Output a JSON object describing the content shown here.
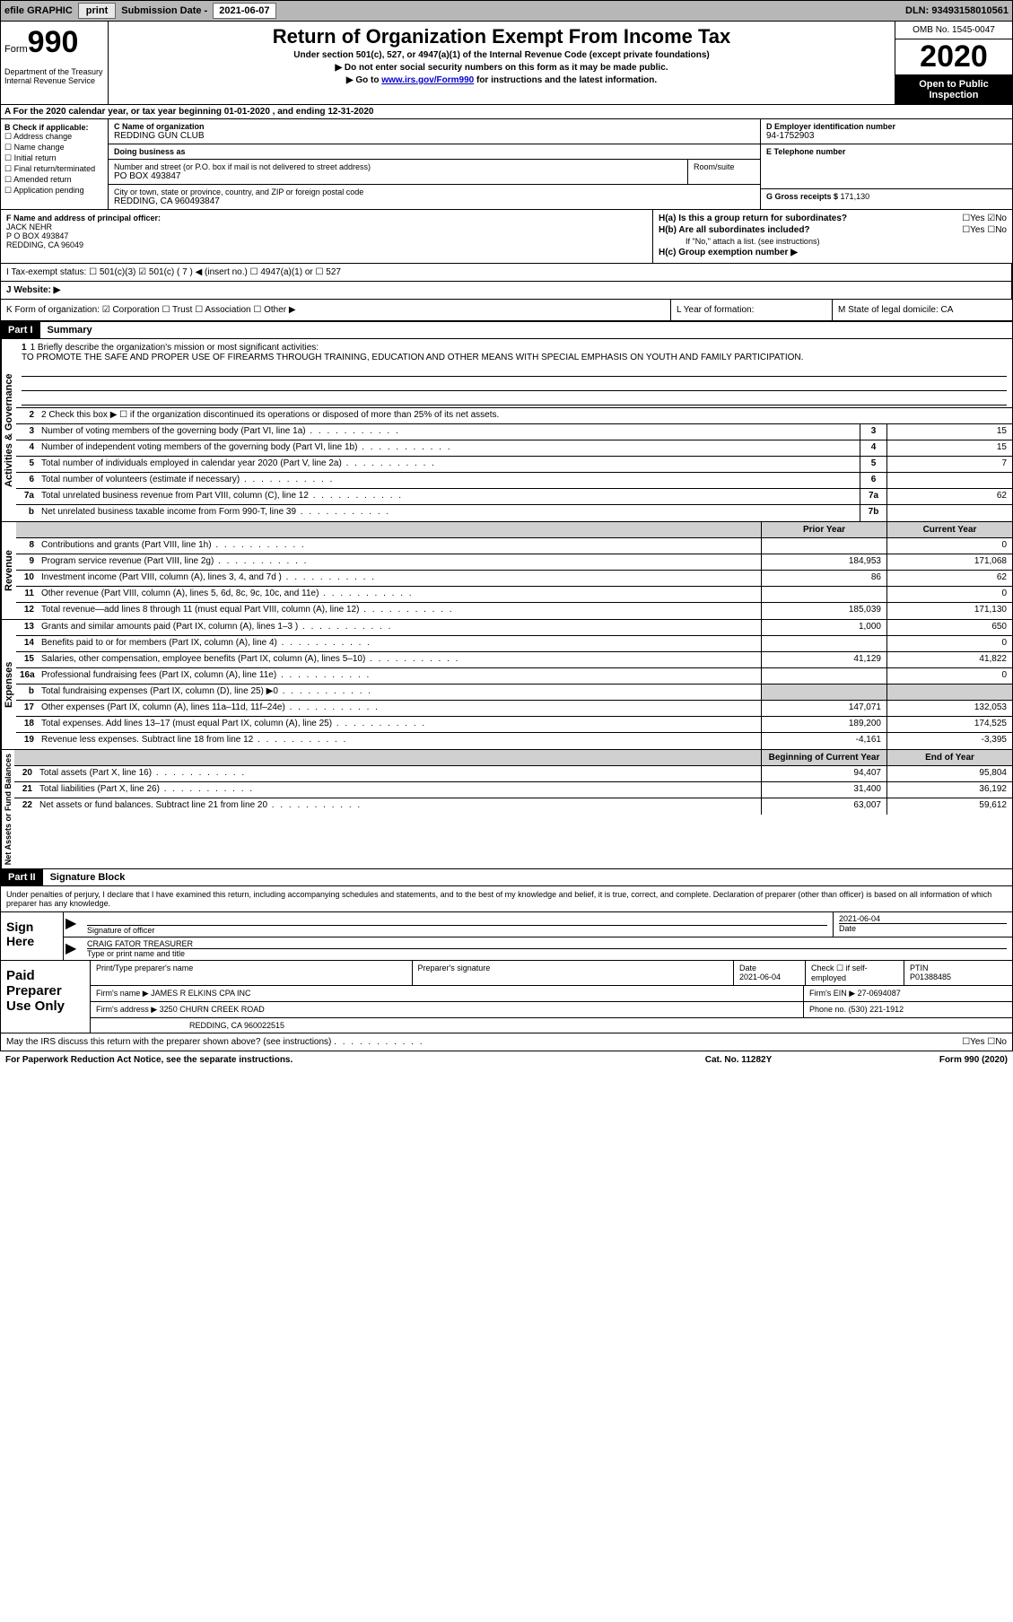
{
  "toolbar": {
    "efile": "efile GRAPHIC",
    "print": "print",
    "subdate_label": "Submission Date - ",
    "subdate": "2021-06-07",
    "dln": "DLN: 93493158010561"
  },
  "header": {
    "form_label": "Form",
    "form_num": "990",
    "dept": "Department of the Treasury\nInternal Revenue Service",
    "title": "Return of Organization Exempt From Income Tax",
    "subtitle": "Under section 501(c), 527, or 4947(a)(1) of the Internal Revenue Code (except private foundations)",
    "note1": "▶ Do not enter social security numbers on this form as it may be made public.",
    "note2_pre": "▶ Go to ",
    "note2_link": "www.irs.gov/Form990",
    "note2_post": " for instructions and the latest information.",
    "omb": "OMB No. 1545-0047",
    "year": "2020",
    "inspect": "Open to Public Inspection"
  },
  "section_a": "A For the 2020 calendar year, or tax year beginning 01-01-2020   , and ending 12-31-2020",
  "col_b": {
    "label": "B Check if applicable:",
    "items": [
      "☐ Address change",
      "☐ Name change",
      "☐ Initial return",
      "☐ Final return/terminated",
      "☐ Amended return",
      "☐ Application pending"
    ]
  },
  "col_c": {
    "name_label": "C Name of organization",
    "name": "REDDING GUN CLUB",
    "dba_label": "Doing business as",
    "addr_label": "Number and street (or P.O. box if mail is not delivered to street address)",
    "addr": "PO BOX 493847",
    "room_label": "Room/suite",
    "city_label": "City or town, state or province, country, and ZIP or foreign postal code",
    "city": "REDDING, CA  960493847"
  },
  "col_d": {
    "ein_label": "D Employer identification number",
    "ein": "94-1752903",
    "phone_label": "E Telephone number",
    "gross_label": "G Gross receipts $ ",
    "gross": "171,130"
  },
  "block_f": {
    "label": "F  Name and address of principal officer:",
    "name": "JACK NEHR",
    "addr1": "P O BOX 493847",
    "addr2": "REDDING, CA  96049",
    "h_a": "H(a)  Is this a group return for subordinates?",
    "h_a_ans": "☐Yes ☑No",
    "h_b": "H(b)  Are all subordinates included?",
    "h_b_ans": "☐Yes ☐No",
    "h_b_note": "If \"No,\" attach a list. (see instructions)",
    "h_c": "H(c)  Group exemption number ▶"
  },
  "status": {
    "label": "I    Tax-exempt status:",
    "opts": "☐ 501(c)(3)   ☑ 501(c) ( 7 ) ◀ (insert no.)   ☐ 4947(a)(1) or  ☐ 527"
  },
  "website": {
    "label": "J   Website: ▶"
  },
  "k": {
    "label": "K Form of organization:  ☑ Corporation  ☐ Trust  ☐ Association  ☐ Other ▶"
  },
  "l": {
    "label": "L Year of formation:"
  },
  "m": {
    "label": "M State of legal domicile: CA"
  },
  "part1": {
    "header": "Part I",
    "title": "Summary",
    "line1_label": "1  Briefly describe the organization's mission or most significant activities:",
    "line1_text": "TO PROMOTE THE SAFE AND PROPER USE OF FIREARMS THROUGH TRAINING, EDUCATION AND OTHER MEANS WITH SPECIAL EMPHASIS ON YOUTH AND FAMILY PARTICIPATION.",
    "line2": "2   Check this box ▶ ☐  if the organization discontinued its operations or disposed of more than 25% of its net assets.",
    "vtab_gov": "Activities & Governance",
    "vtab_rev": "Revenue",
    "vtab_exp": "Expenses",
    "vtab_net": "Net Assets or Fund Balances",
    "col_prior": "Prior Year",
    "col_current": "Current Year",
    "col_beg": "Beginning of Current Year",
    "col_end": "End of Year"
  },
  "gov_rows": [
    {
      "n": "3",
      "d": "Number of voting members of the governing body (Part VI, line 1a)",
      "box": "3",
      "v": "15"
    },
    {
      "n": "4",
      "d": "Number of independent voting members of the governing body (Part VI, line 1b)",
      "box": "4",
      "v": "15"
    },
    {
      "n": "5",
      "d": "Total number of individuals employed in calendar year 2020 (Part V, line 2a)",
      "box": "5",
      "v": "7"
    },
    {
      "n": "6",
      "d": "Total number of volunteers (estimate if necessary)",
      "box": "6",
      "v": ""
    },
    {
      "n": "7a",
      "d": "Total unrelated business revenue from Part VIII, column (C), line 12",
      "box": "7a",
      "v": "62"
    },
    {
      "n": "b",
      "d": "Net unrelated business taxable income from Form 990-T, line 39",
      "box": "7b",
      "v": ""
    }
  ],
  "rev_rows": [
    {
      "n": "8",
      "d": "Contributions and grants (Part VIII, line 1h)",
      "p": "",
      "c": "0"
    },
    {
      "n": "9",
      "d": "Program service revenue (Part VIII, line 2g)",
      "p": "184,953",
      "c": "171,068"
    },
    {
      "n": "10",
      "d": "Investment income (Part VIII, column (A), lines 3, 4, and 7d )",
      "p": "86",
      "c": "62"
    },
    {
      "n": "11",
      "d": "Other revenue (Part VIII, column (A), lines 5, 6d, 8c, 9c, 10c, and 11e)",
      "p": "",
      "c": "0"
    },
    {
      "n": "12",
      "d": "Total revenue—add lines 8 through 11 (must equal Part VIII, column (A), line 12)",
      "p": "185,039",
      "c": "171,130"
    }
  ],
  "exp_rows": [
    {
      "n": "13",
      "d": "Grants and similar amounts paid (Part IX, column (A), lines 1–3 )",
      "p": "1,000",
      "c": "650"
    },
    {
      "n": "14",
      "d": "Benefits paid to or for members (Part IX, column (A), line 4)",
      "p": "",
      "c": "0"
    },
    {
      "n": "15",
      "d": "Salaries, other compensation, employee benefits (Part IX, column (A), lines 5–10)",
      "p": "41,129",
      "c": "41,822"
    },
    {
      "n": "16a",
      "d": "Professional fundraising fees (Part IX, column (A), line 11e)",
      "p": "",
      "c": "0"
    },
    {
      "n": "b",
      "d": "Total fundraising expenses (Part IX, column (D), line 25) ▶0",
      "p": "shade",
      "c": "shade"
    },
    {
      "n": "17",
      "d": "Other expenses (Part IX, column (A), lines 11a–11d, 11f–24e)",
      "p": "147,071",
      "c": "132,053"
    },
    {
      "n": "18",
      "d": "Total expenses. Add lines 13–17 (must equal Part IX, column (A), line 25)",
      "p": "189,200",
      "c": "174,525"
    },
    {
      "n": "19",
      "d": "Revenue less expenses. Subtract line 18 from line 12",
      "p": "-4,161",
      "c": "-3,395"
    }
  ],
  "net_rows": [
    {
      "n": "20",
      "d": "Total assets (Part X, line 16)",
      "p": "94,407",
      "c": "95,804"
    },
    {
      "n": "21",
      "d": "Total liabilities (Part X, line 26)",
      "p": "31,400",
      "c": "36,192"
    },
    {
      "n": "22",
      "d": "Net assets or fund balances. Subtract line 21 from line 20",
      "p": "63,007",
      "c": "59,612"
    }
  ],
  "part2": {
    "header": "Part II",
    "title": "Signature Block",
    "decl": "Under penalties of perjury, I declare that I have examined this return, including accompanying schedules and statements, and to the best of my knowledge and belief, it is true, correct, and complete. Declaration of preparer (other than officer) is based on all information of which preparer has any knowledge.",
    "sign_here": "Sign Here",
    "sig_officer": "Signature of officer",
    "sig_date": "2021-06-04",
    "sig_date_label": "Date",
    "sig_name": "CRAIG FATOR  TREASURER",
    "sig_name_label": "Type or print name and title",
    "paid_label": "Paid Preparer Use Only",
    "prep_name_label": "Print/Type preparer's name",
    "prep_sig_label": "Preparer's signature",
    "prep_date_label": "Date",
    "prep_date": "2021-06-04",
    "prep_check": "Check ☐ if self-employed",
    "ptin_label": "PTIN",
    "ptin": "P01388485",
    "firm_name_label": "Firm's name    ▶",
    "firm_name": "JAMES R ELKINS CPA INC",
    "firm_ein_label": "Firm's EIN ▶",
    "firm_ein": "27-0694087",
    "firm_addr_label": "Firm's address ▶",
    "firm_addr1": "3250 CHURN CREEK ROAD",
    "firm_addr2": "REDDING, CA  960022515",
    "firm_phone_label": "Phone no.",
    "firm_phone": "(530) 221-1912",
    "discuss": "May the IRS discuss this return with the preparer shown above? (see instructions)",
    "discuss_ans": "☐Yes  ☐No"
  },
  "footer": {
    "left": "For Paperwork Reduction Act Notice, see the separate instructions.",
    "mid": "Cat. No. 11282Y",
    "right": "Form 990 (2020)"
  }
}
